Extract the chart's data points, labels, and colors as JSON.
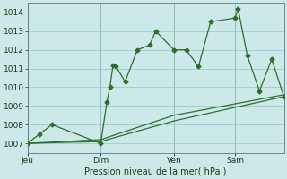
{
  "background_color": "#cce8e8",
  "plot_bg_color": "#cce8e8",
  "grid_color": "#99cccc",
  "line_color": "#2d6e2d",
  "xlabel": "Pression niveau de la mer( hPa )",
  "ylim": [
    1006.5,
    1014.5
  ],
  "yticks": [
    1007,
    1008,
    1009,
    1010,
    1011,
    1012,
    1013,
    1014
  ],
  "xtick_labels": [
    "Jeu",
    "Dim",
    "Ven",
    "Sam"
  ],
  "xtick_positions": [
    0,
    24,
    48,
    68
  ],
  "xlim": [
    0,
    84
  ],
  "vline_positions": [
    0,
    24,
    48,
    68
  ],
  "line1_x": [
    0,
    4,
    8,
    24,
    26,
    27,
    28,
    29,
    32,
    36,
    40,
    42,
    48,
    52,
    56,
    60,
    68,
    69,
    72,
    76,
    80,
    84
  ],
  "line1_y": [
    1007.0,
    1007.5,
    1008.0,
    1007.0,
    1009.2,
    1010.0,
    1011.15,
    1011.1,
    1010.3,
    1012.0,
    1012.25,
    1013.0,
    1012.0,
    1012.0,
    1011.1,
    1013.5,
    1013.7,
    1014.2,
    1011.7,
    1009.8,
    1011.5,
    1009.5
  ],
  "line2_x": [
    0,
    24,
    48,
    84
  ],
  "line2_y": [
    1007.0,
    1007.2,
    1008.5,
    1009.6
  ],
  "line3_x": [
    0,
    24,
    48,
    84
  ],
  "line3_y": [
    1007.0,
    1007.1,
    1008.2,
    1009.5
  ],
  "marker_size": 2.5
}
